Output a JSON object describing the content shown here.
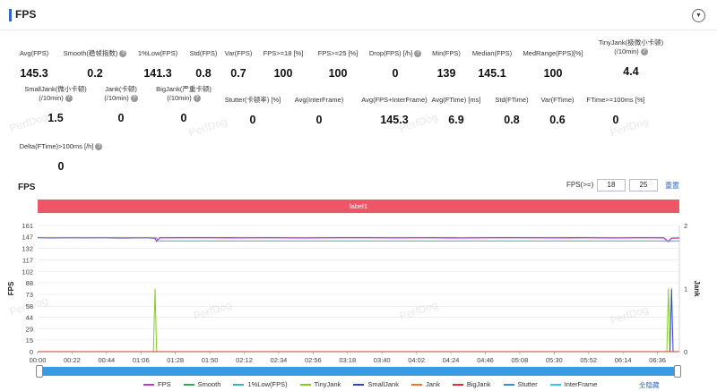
{
  "header": {
    "title": "FPS",
    "toggle_icon": "chevron-down-icon"
  },
  "stats": [
    {
      "label": "Avg(FPS)",
      "value": "145.3",
      "help": false
    },
    {
      "label": "Smooth(稳帧指数)",
      "value": "0.2",
      "help": true
    },
    {
      "label": "1%Low(FPS)",
      "value": "141.3",
      "help": false
    },
    {
      "label": "Std(FPS)",
      "value": "0.8",
      "help": false
    },
    {
      "label": "Var(FPS)",
      "value": "0.7",
      "help": false
    },
    {
      "label": "FPS>=18 [%]",
      "value": "100",
      "help": false
    },
    {
      "label": "FPS>=25 [%]",
      "value": "100",
      "help": false
    },
    {
      "label": "Drop(FPS) [/h]",
      "value": "0",
      "help": true
    },
    {
      "label": "Min(FPS)",
      "value": "139",
      "help": false
    },
    {
      "label": "Median(FPS)",
      "value": "145.1",
      "help": false
    },
    {
      "label": "MedRange(FPS)[%]",
      "value": "100",
      "help": false
    },
    {
      "label": "TinyJank(极微小卡顿)",
      "label2": "(/10min)",
      "value": "4.4",
      "help": true
    },
    {
      "label": "SmallJank(微小卡顿)",
      "label2": "(/10min)",
      "value": "1.5",
      "help": true
    },
    {
      "label": "Jank(卡顿)",
      "label2": "(/10min)",
      "value": "0",
      "help": true
    },
    {
      "label": "BigJank(严重卡顿)",
      "label2": "(/10min)",
      "value": "0",
      "help": true
    },
    {
      "label": "Stutter(卡顿率) [%]",
      "value": "0",
      "help": false
    },
    {
      "label": "Avg(InterFrame)",
      "value": "0",
      "help": false
    },
    {
      "label": "Avg(FPS+InterFrame)",
      "value": "145.3",
      "help": false
    },
    {
      "label": "Avg(FTime) [ms]",
      "value": "6.9",
      "help": false
    },
    {
      "label": "Std(FTime)",
      "value": "0.8",
      "help": false
    },
    {
      "label": "Var(FTime)",
      "value": "0.6",
      "help": false
    },
    {
      "label": "FTime>=100ms [%]",
      "value": "0",
      "help": false
    },
    {
      "label": "Delta(FTime)>100ms [/h]",
      "value": "0",
      "help": true
    }
  ],
  "watermark": "PerfDog",
  "chart_section": {
    "title": "FPS",
    "fps_filter_label": "FPS(>=)",
    "fps_filter_values": [
      "18",
      "25"
    ],
    "reset_label": "重置",
    "label_band": "label1",
    "hide_all_label": "全隐藏"
  },
  "chart_data": {
    "type": "line",
    "ylabel_left": "FPS",
    "ylabel_right": "Jank",
    "yticks_left": [
      0,
      15,
      29,
      44,
      58,
      73,
      88,
      102,
      117,
      132,
      147,
      161
    ],
    "yticks_right": [
      0,
      1,
      2
    ],
    "ylim_left": [
      0,
      161
    ],
    "ylim_right": [
      0,
      2
    ],
    "x_range_seconds": [
      0,
      410
    ],
    "x_tick_labels": [
      "00:00",
      "00:22",
      "00:44",
      "01:06",
      "01:28",
      "01:50",
      "02:12",
      "02:34",
      "02:56",
      "03:18",
      "03:40",
      "04:02",
      "04:24",
      "04:46",
      "05:08",
      "05:30",
      "05:52",
      "06:14",
      "06:36"
    ],
    "x_tick_seconds": [
      0,
      22,
      44,
      66,
      88,
      110,
      132,
      154,
      176,
      198,
      220,
      242,
      264,
      286,
      308,
      330,
      352,
      374,
      396
    ],
    "grid": true,
    "series": [
      {
        "name": "FPS",
        "color": "#c03fc0",
        "axis": "left",
        "description": "~145 across run, small dips to ~140 near 01:18 and ~06:40",
        "points": [
          [
            0,
            145.3
          ],
          [
            10,
            145.1
          ],
          [
            20,
            145.4
          ],
          [
            30,
            145.2
          ],
          [
            40,
            145.3
          ],
          [
            55,
            145.0
          ],
          [
            70,
            145.3
          ],
          [
            75,
            144.6
          ],
          [
            76,
            141.0
          ],
          [
            78,
            145.2
          ],
          [
            90,
            145.3
          ],
          [
            110,
            145.4
          ],
          [
            130,
            145.2
          ],
          [
            150,
            145.3
          ],
          [
            170,
            145.1
          ],
          [
            190,
            145.3
          ],
          [
            210,
            145.4
          ],
          [
            230,
            145.2
          ],
          [
            250,
            145.3
          ],
          [
            270,
            145.1
          ],
          [
            290,
            145.3
          ],
          [
            310,
            145.4
          ],
          [
            330,
            145.2
          ],
          [
            350,
            145.3
          ],
          [
            370,
            145.1
          ],
          [
            385,
            145.3
          ],
          [
            400,
            145.2
          ],
          [
            403,
            140.5
          ],
          [
            405,
            144.8
          ],
          [
            410,
            145.1
          ]
        ]
      },
      {
        "name": "Smooth",
        "color": "#33aa55",
        "axis": "left",
        "points": []
      },
      {
        "name": "1%Low(FPS)",
        "color": "#33b5b5",
        "axis": "left",
        "description": "141.3 flat after first window",
        "points": [
          [
            0,
            145.3
          ],
          [
            76,
            145.3
          ],
          [
            77,
            141.3
          ],
          [
            410,
            141.3
          ]
        ]
      },
      {
        "name": "TinyJank",
        "color": "#88cc22",
        "axis": "right",
        "description": "spike to 1 at ~01:15 and ~06:43",
        "points": [
          [
            0,
            0
          ],
          [
            74,
            0
          ],
          [
            75,
            1
          ],
          [
            76,
            0
          ],
          [
            402,
            0
          ],
          [
            403,
            1
          ],
          [
            404,
            0
          ],
          [
            410,
            0
          ]
        ]
      },
      {
        "name": "SmallJank",
        "color": "#3344cc",
        "axis": "right",
        "description": "spike to 1 at ~06:44",
        "points": [
          [
            0,
            0
          ],
          [
            404,
            0
          ],
          [
            405,
            1
          ],
          [
            406,
            0
          ],
          [
            410,
            0
          ]
        ]
      },
      {
        "name": "Jank",
        "color": "#ee7733",
        "axis": "right",
        "points": [
          [
            0,
            0
          ],
          [
            410,
            0
          ]
        ]
      },
      {
        "name": "BigJank",
        "color": "#dd3333",
        "axis": "right",
        "points": [
          [
            0,
            0
          ],
          [
            410,
            0
          ]
        ]
      },
      {
        "name": "Stutter",
        "color": "#4488dd",
        "axis": "right",
        "points": []
      },
      {
        "name": "InterFrame",
        "color": "#33ccdd",
        "axis": "left",
        "points": []
      }
    ]
  }
}
